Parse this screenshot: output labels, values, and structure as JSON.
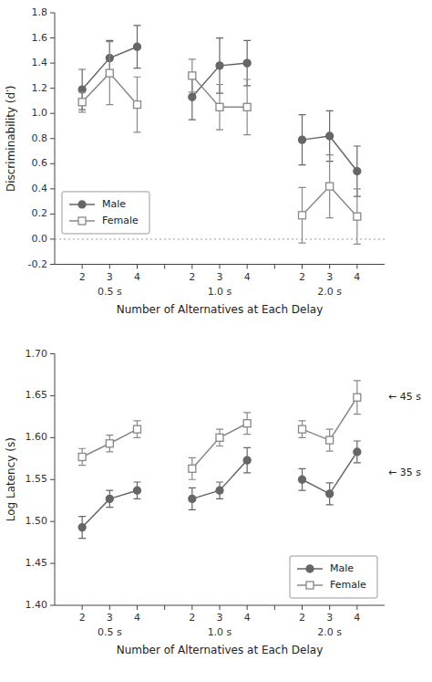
{
  "chart_data": [
    {
      "type": "line",
      "ylabel": "Discriminability (d′)",
      "xlabel": "Number of Alternatives at Each Delay",
      "categories": [
        "2",
        "3",
        "4",
        null,
        "2",
        "3",
        "4",
        null,
        "2",
        "3",
        "4"
      ],
      "groups": [
        "0.5 s",
        "1.0 s",
        "2.0 s"
      ],
      "series": [
        {
          "name": "Male",
          "color": "#666666",
          "marker": "circle",
          "values": [
            1.19,
            1.44,
            1.53,
            null,
            1.13,
            1.38,
            1.4,
            null,
            0.79,
            0.82,
            0.54
          ],
          "errors": [
            0.16,
            0.14,
            0.17,
            null,
            0.18,
            0.22,
            0.18,
            null,
            0.2,
            0.2,
            0.2
          ]
        },
        {
          "name": "Female",
          "color": "#888888",
          "marker": "open-square",
          "values": [
            1.09,
            1.32,
            1.07,
            null,
            1.3,
            1.05,
            1.05,
            null,
            0.19,
            0.42,
            0.18
          ],
          "errors": [
            0.08,
            0.25,
            0.22,
            null,
            0.13,
            0.18,
            0.22,
            null,
            0.22,
            0.25,
            0.22
          ]
        }
      ],
      "reference_lines": [
        0
      ],
      "ylim": [
        -0.2,
        1.8
      ],
      "yticks": [
        -0.2,
        {
          "value": 0,
          "label": "0.0"
        },
        0.2,
        0.4,
        0.6,
        0.8,
        {
          "value": 1,
          "label": "1.0"
        },
        1.2,
        1.4,
        1.6,
        1.8
      ],
      "grid": false,
      "legend": "lower-left"
    },
    {
      "type": "line",
      "ylabel": "Log Latency (s)",
      "xlabel": "Number of Alternatives at Each Delay",
      "categories": [
        "2",
        "3",
        "4",
        null,
        "2",
        "3",
        "4",
        null,
        "2",
        "3",
        "4"
      ],
      "groups": [
        "0.5 s",
        "1.0 s",
        "2.0 s"
      ],
      "series": [
        {
          "name": "Male",
          "color": "#666666",
          "marker": "circle",
          "values": [
            1.493,
            1.527,
            1.537,
            null,
            1.527,
            1.537,
            1.573,
            null,
            1.55,
            1.533,
            1.583
          ],
          "errors": [
            0.013,
            0.01,
            0.01,
            null,
            0.013,
            0.01,
            0.015,
            null,
            0.013,
            0.013,
            0.013
          ]
        },
        {
          "name": "Female",
          "color": "#888888",
          "marker": "open-square",
          "values": [
            1.577,
            1.593,
            1.61,
            null,
            1.563,
            1.6,
            1.617,
            null,
            1.61,
            1.597,
            1.648
          ],
          "errors": [
            0.01,
            0.01,
            0.01,
            null,
            0.013,
            0.01,
            0.013,
            null,
            0.01,
            0.013,
            0.02
          ]
        }
      ],
      "annotations": [
        {
          "text": "← 45 s",
          "y": 1.648
        },
        {
          "text": "← 35 s",
          "y": 1.558
        }
      ],
      "ylim": [
        1.4,
        1.7
      ],
      "yticks": [
        {
          "value": 1.4,
          "label": "1.40"
        },
        1.45,
        {
          "value": 1.5,
          "label": "1.50"
        },
        1.55,
        {
          "value": 1.6,
          "label": "1.60"
        },
        1.65,
        {
          "value": 1.7,
          "label": "1.70"
        }
      ],
      "grid": false,
      "legend": "lower-right"
    }
  ]
}
